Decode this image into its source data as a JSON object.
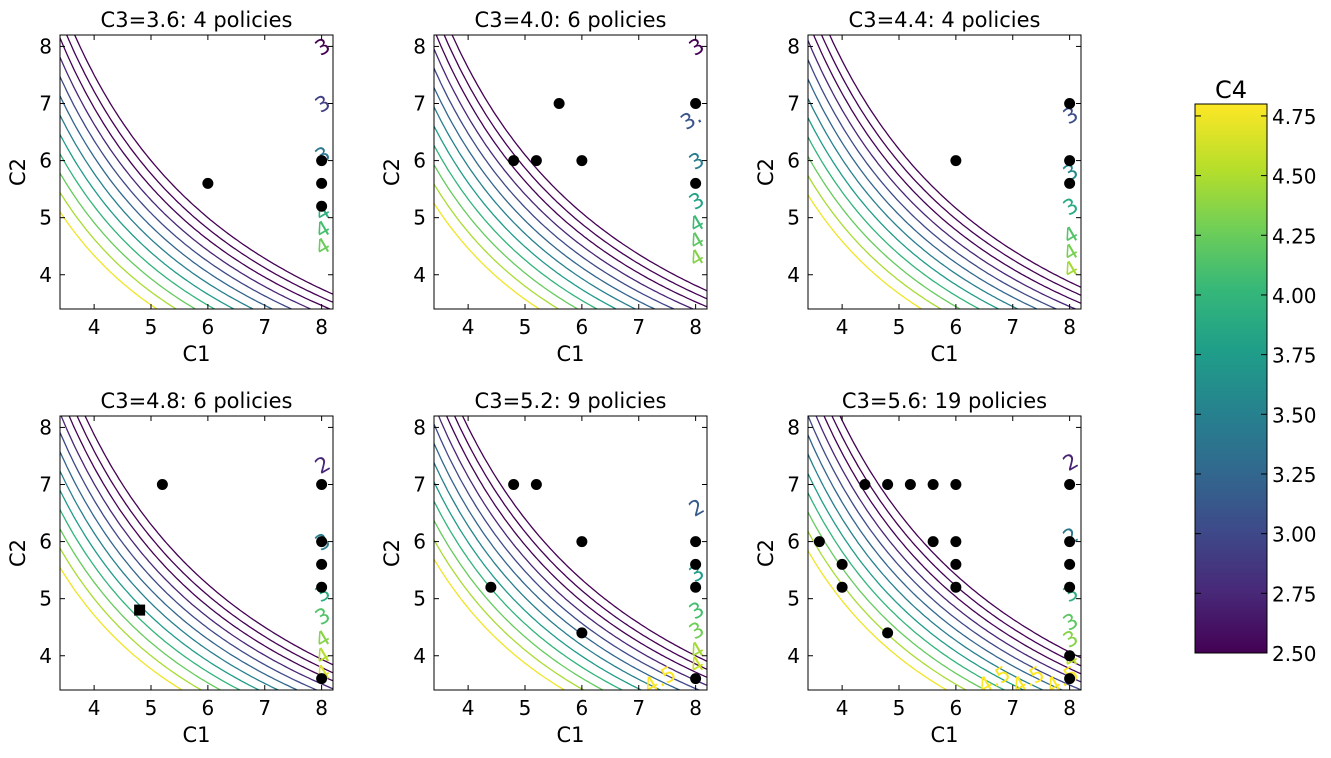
{
  "chart_data": {
    "type": "contour+scatter",
    "grid": false,
    "xlim": [
      3.4,
      8.2
    ],
    "ylim": [
      3.4,
      8.2
    ],
    "xticks": [
      4,
      5,
      6,
      7,
      8
    ],
    "yticks": [
      4,
      5,
      6,
      7,
      8
    ],
    "xlabel": "C1",
    "ylabel": "C2",
    "contour_levels": [
      2.0,
      2.25,
      2.5,
      2.75,
      3.0,
      3.25,
      3.5,
      3.75,
      4.0,
      4.25,
      4.5,
      4.75
    ],
    "panels": [
      {
        "title": "C3=3.6: 4 policies",
        "contour_constant_k": 0.0,
        "contour_labels": [
          {
            "text": "3.",
            "at": [
              8.0,
              8.0
            ]
          },
          {
            "text": "3.",
            "at": [
              8.0,
              7.0
            ]
          },
          {
            "text": "3.",
            "at": [
              8.0,
              6.1
            ]
          },
          {
            "text": "4.",
            "at": [
              8.0,
              5.1
            ]
          },
          {
            "text": "4.",
            "at": [
              8.0,
              4.8
            ]
          },
          {
            "text": "4.",
            "at": [
              8.0,
              4.5
            ]
          }
        ],
        "points": [
          {
            "x": 6.0,
            "y": 5.6
          },
          {
            "x": 8.0,
            "y": 6.0
          },
          {
            "x": 8.0,
            "y": 5.6
          },
          {
            "x": 8.0,
            "y": 5.2
          }
        ]
      },
      {
        "title": "C3=4.0: 6 policies",
        "contour_constant_k": 0.05,
        "contour_labels": [
          {
            "text": "3.",
            "at": [
              8.0,
              8.0
            ]
          },
          {
            "text": "3.",
            "at": [
              7.85,
              6.7
            ]
          },
          {
            "text": "3.",
            "at": [
              8.0,
              6.0
            ]
          },
          {
            "text": "3.",
            "at": [
              8.0,
              5.3
            ]
          },
          {
            "text": "4.",
            "at": [
              8.0,
              4.9
            ]
          },
          {
            "text": "4.",
            "at": [
              8.0,
              4.6
            ]
          },
          {
            "text": "4.",
            "at": [
              8.0,
              4.3
            ]
          }
        ],
        "points": [
          {
            "x": 4.8,
            "y": 6.0
          },
          {
            "x": 5.2,
            "y": 6.0
          },
          {
            "x": 5.6,
            "y": 7.0
          },
          {
            "x": 6.0,
            "y": 6.0
          },
          {
            "x": 8.0,
            "y": 7.0
          },
          {
            "x": 8.0,
            "y": 5.6
          }
        ]
      },
      {
        "title": "C3=4.4: 4 policies",
        "contour_constant_k": 0.1,
        "contour_labels": [
          {
            "text": "3.",
            "at": [
              8.0,
              6.8
            ]
          },
          {
            "text": "3.",
            "at": [
              8.0,
              5.8
            ]
          },
          {
            "text": "3.",
            "at": [
              8.0,
              5.2
            ]
          },
          {
            "text": "4.",
            "at": [
              8.0,
              4.7
            ]
          },
          {
            "text": "4.",
            "at": [
              8.0,
              4.4
            ]
          },
          {
            "text": "4.",
            "at": [
              8.0,
              4.1
            ]
          }
        ],
        "points": [
          {
            "x": 6.0,
            "y": 6.0
          },
          {
            "x": 8.0,
            "y": 7.0
          },
          {
            "x": 8.0,
            "y": 6.0
          },
          {
            "x": 8.0,
            "y": 5.6
          }
        ]
      },
      {
        "title": "C3=4.8: 6 policies",
        "contour_constant_k": 0.15,
        "contour_labels": [
          {
            "text": "2.",
            "at": [
              8.0,
              7.35
            ]
          },
          {
            "text": "3.",
            "at": [
              8.0,
              6.0
            ]
          },
          {
            "text": "3.",
            "at": [
              8.0,
              5.1
            ]
          },
          {
            "text": "3.",
            "at": [
              8.0,
              4.7
            ]
          },
          {
            "text": "4.",
            "at": [
              8.0,
              4.3
            ]
          },
          {
            "text": "4.",
            "at": [
              8.0,
              4.0
            ]
          },
          {
            "text": "4.",
            "at": [
              8.0,
              3.7
            ]
          }
        ],
        "points": [
          {
            "x": 5.2,
            "y": 7.0
          },
          {
            "x": 8.0,
            "y": 7.0
          },
          {
            "x": 8.0,
            "y": 6.0
          },
          {
            "x": 8.0,
            "y": 5.6
          },
          {
            "x": 8.0,
            "y": 5.2
          },
          {
            "x": 8.0,
            "y": 3.6
          }
        ],
        "square_points": [
          {
            "x": 4.8,
            "y": 4.8
          }
        ]
      },
      {
        "title": "C3=5.2: 9 policies",
        "contour_constant_k": 0.2,
        "contour_labels": [
          {
            "text": "2.",
            "at": [
              8.0,
              6.6
            ]
          },
          {
            "text": "3.",
            "at": [
              8.0,
              5.45
            ]
          },
          {
            "text": "3.",
            "at": [
              8.0,
              4.8
            ]
          },
          {
            "text": "3.",
            "at": [
              8.0,
              4.45
            ]
          },
          {
            "text": "4.",
            "at": [
              8.0,
              4.1
            ]
          },
          {
            "text": "4.",
            "at": [
              8.0,
              3.85
            ]
          },
          {
            "text": "4.5",
            "at": [
              7.2,
              3.5
            ]
          }
        ],
        "points": [
          {
            "x": 4.4,
            "y": 5.2
          },
          {
            "x": 4.8,
            "y": 7.0
          },
          {
            "x": 5.2,
            "y": 7.0
          },
          {
            "x": 6.0,
            "y": 6.0
          },
          {
            "x": 6.0,
            "y": 4.4
          },
          {
            "x": 8.0,
            "y": 6.0
          },
          {
            "x": 8.0,
            "y": 5.6
          },
          {
            "x": 8.0,
            "y": 5.2
          },
          {
            "x": 8.0,
            "y": 3.6
          }
        ]
      },
      {
        "title": "C3=5.6: 19 policies",
        "contour_constant_k": 0.25,
        "contour_labels": [
          {
            "text": "2.",
            "at": [
              8.0,
              7.4
            ]
          },
          {
            "text": "2.",
            "at": [
              8.0,
              6.1
            ]
          },
          {
            "text": "3.",
            "at": [
              8.0,
              5.1
            ]
          },
          {
            "text": "3.",
            "at": [
              8.0,
              4.6
            ]
          },
          {
            "text": "3.",
            "at": [
              8.0,
              4.3
            ]
          },
          {
            "text": "4.",
            "at": [
              8.0,
              3.95
            ]
          },
          {
            "text": "4.5",
            "at": [
              6.5,
              3.5
            ]
          },
          {
            "text": "4.5",
            "at": [
              7.1,
              3.5
            ]
          },
          {
            "text": "4.5",
            "at": [
              7.7,
              3.5
            ]
          }
        ],
        "points": [
          {
            "x": 3.6,
            "y": 6.0
          },
          {
            "x": 4.0,
            "y": 5.6
          },
          {
            "x": 4.0,
            "y": 5.2
          },
          {
            "x": 4.4,
            "y": 7.0
          },
          {
            "x": 4.8,
            "y": 7.0
          },
          {
            "x": 4.8,
            "y": 4.4
          },
          {
            "x": 5.2,
            "y": 7.0
          },
          {
            "x": 5.6,
            "y": 7.0
          },
          {
            "x": 5.6,
            "y": 6.0
          },
          {
            "x": 6.0,
            "y": 7.0
          },
          {
            "x": 6.0,
            "y": 6.0
          },
          {
            "x": 6.0,
            "y": 5.6
          },
          {
            "x": 6.0,
            "y": 5.2
          },
          {
            "x": 8.0,
            "y": 7.0
          },
          {
            "x": 8.0,
            "y": 6.0
          },
          {
            "x": 8.0,
            "y": 5.6
          },
          {
            "x": 8.0,
            "y": 5.2
          },
          {
            "x": 8.0,
            "y": 4.0
          },
          {
            "x": 8.0,
            "y": 3.6
          }
        ]
      }
    ],
    "colorbar": {
      "title": "C4",
      "colormap": "viridis",
      "range": [
        2.5,
        4.8
      ],
      "ticks": [
        "2.50",
        "2.75",
        "3.00",
        "3.25",
        "3.50",
        "3.75",
        "4.00",
        "4.25",
        "4.50",
        "4.75"
      ],
      "tick_values": [
        2.5,
        2.75,
        3.0,
        3.25,
        3.5,
        3.75,
        4.0,
        4.25,
        4.5,
        4.75
      ]
    }
  }
}
